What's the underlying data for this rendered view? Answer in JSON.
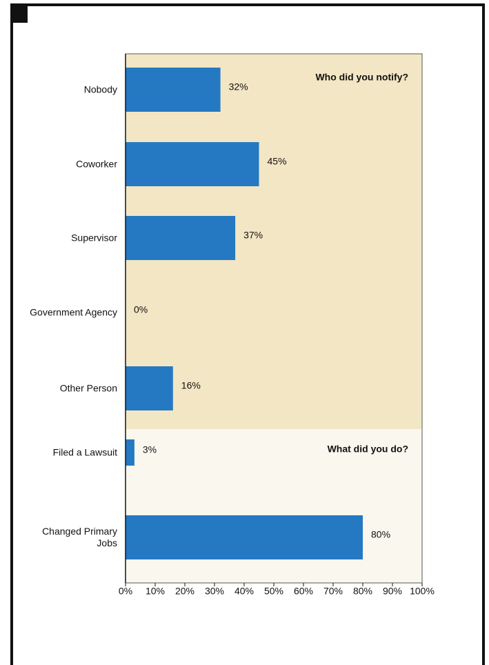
{
  "chart_data": {
    "type": "bar",
    "orientation": "horizontal",
    "color": "#2479c2",
    "xlim": [
      0,
      100
    ],
    "xticks": [
      {
        "value": 0,
        "label": "0%"
      },
      {
        "value": 10,
        "label": "10%"
      },
      {
        "value": 20,
        "label": "20%"
      },
      {
        "value": 30,
        "label": "30%"
      },
      {
        "value": 40,
        "label": "40%"
      },
      {
        "value": 50,
        "label": "50%"
      },
      {
        "value": 60,
        "label": "60%"
      },
      {
        "value": 70,
        "label": "70%"
      },
      {
        "value": 80,
        "label": "80%"
      },
      {
        "value": 90,
        "label": "90%"
      },
      {
        "value": 100,
        "label": "100%"
      }
    ],
    "sections": [
      {
        "title": "Who did you notify?",
        "background": "#f3e6c4",
        "categories": [
          "Nobody",
          "Coworker",
          "Supervisor",
          "Government Agency",
          "Other Person"
        ],
        "values": [
          32,
          45,
          37,
          0,
          16
        ],
        "value_labels": [
          "32%",
          "45%",
          "37%",
          "0%",
          "16%"
        ]
      },
      {
        "title": "What did you do?",
        "background": "#f9f7ee",
        "categories": [
          "Filed a Lawsuit",
          "Changed Primary Jobs"
        ],
        "values": [
          3,
          80
        ],
        "value_labels": [
          "3%",
          "80%"
        ]
      }
    ]
  }
}
